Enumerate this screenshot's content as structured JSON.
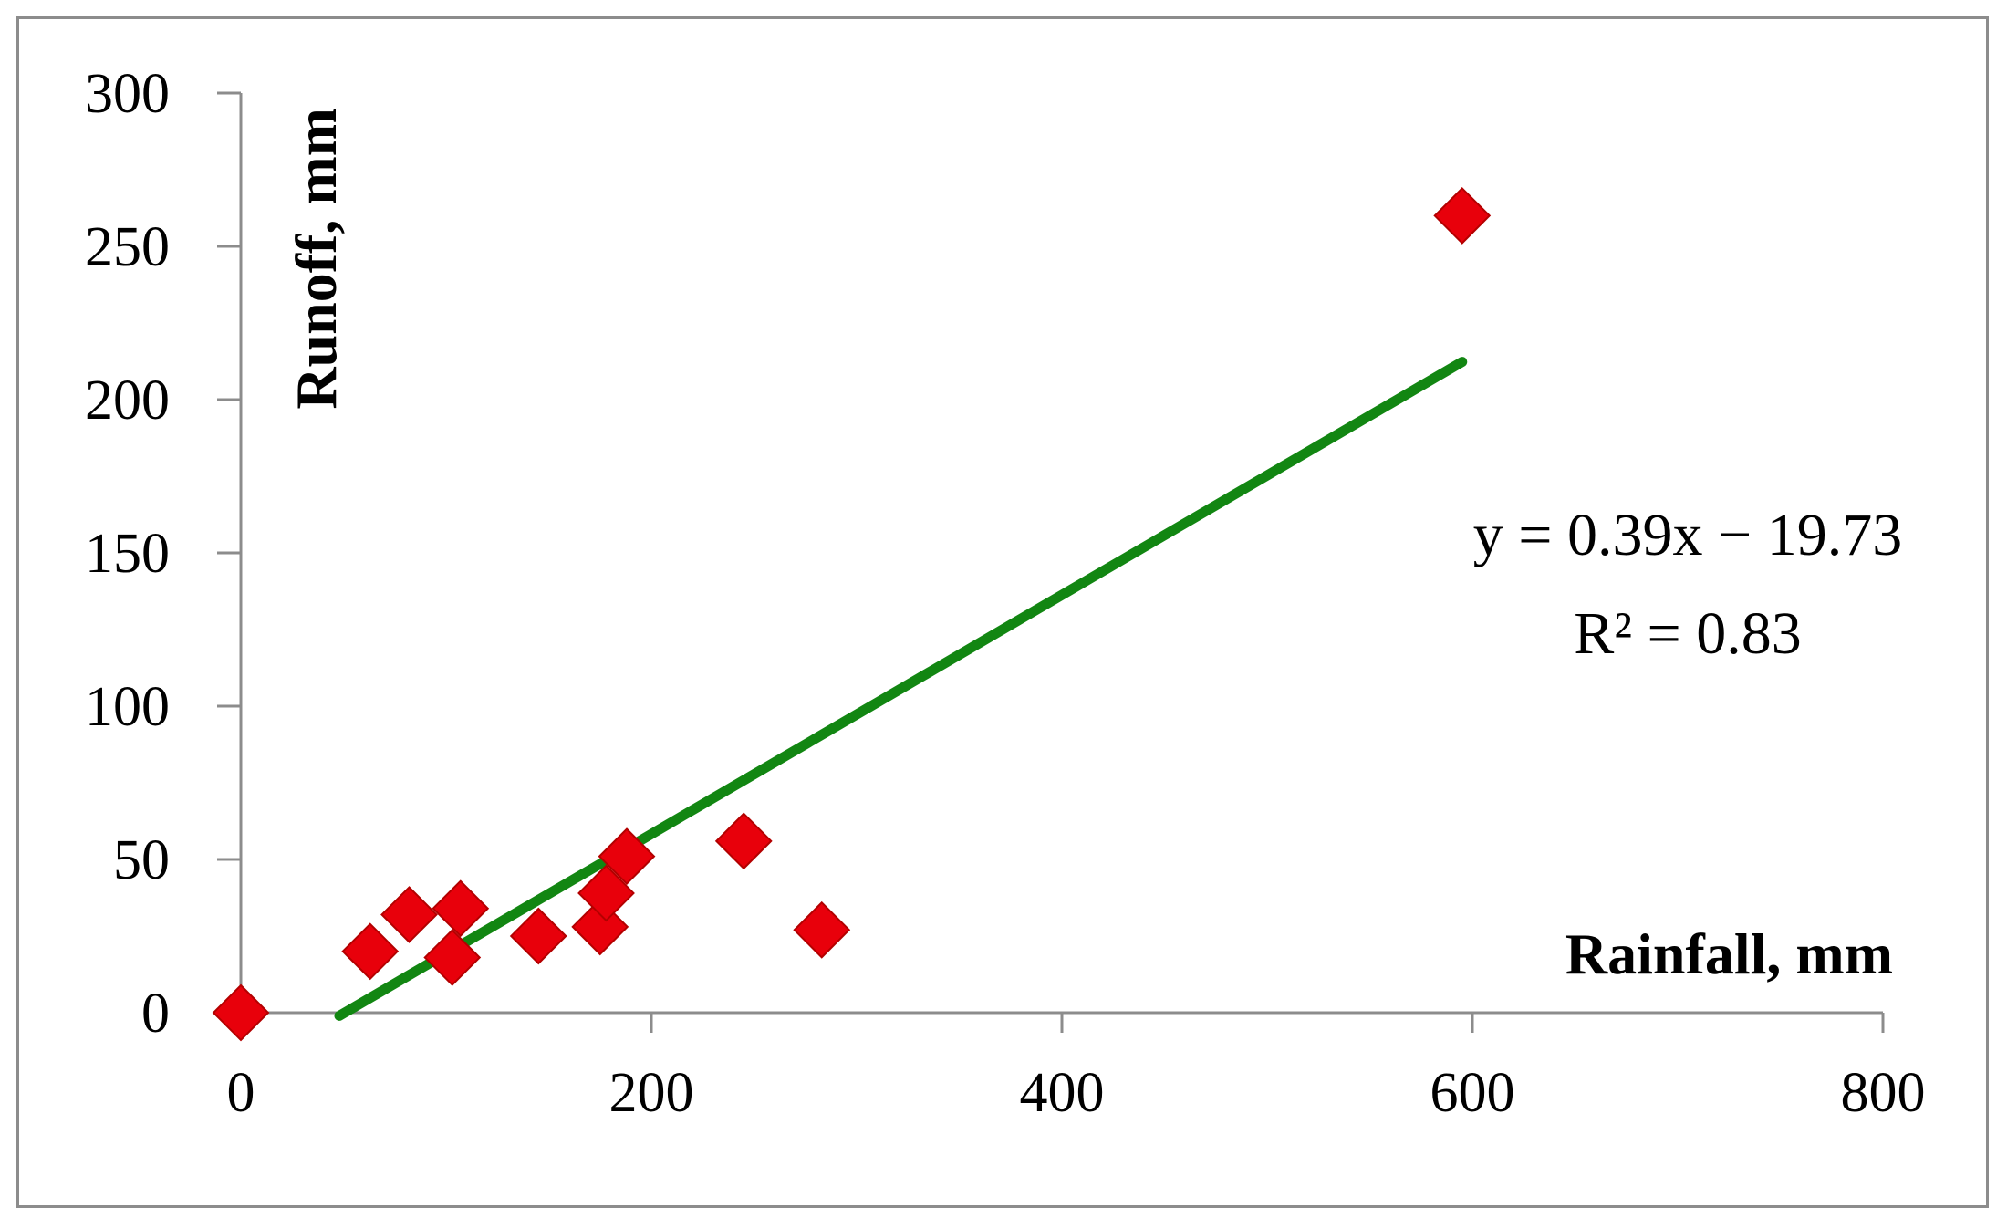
{
  "chart_data": {
    "type": "scatter",
    "title": "",
    "xlabel": "Rainfall, mm",
    "ylabel": "Runoff, mm",
    "xlim": [
      0,
      800
    ],
    "ylim": [
      0,
      300
    ],
    "xticks": [
      0,
      200,
      400,
      600,
      800
    ],
    "yticks": [
      0,
      50,
      100,
      150,
      200,
      250,
      300
    ],
    "grid": false,
    "legend": "none",
    "marker": {
      "shape": "diamond",
      "color": "#e8000b",
      "edge_color": "#b30000"
    },
    "series": [
      {
        "points": [
          {
            "x": 0,
            "y": 0
          },
          {
            "x": 63,
            "y": 20
          },
          {
            "x": 82,
            "y": 32
          },
          {
            "x": 103,
            "y": 18
          },
          {
            "x": 107,
            "y": 34
          },
          {
            "x": 145,
            "y": 25
          },
          {
            "x": 175,
            "y": 28
          },
          {
            "x": 178,
            "y": 39
          },
          {
            "x": 188,
            "y": 51
          },
          {
            "x": 245,
            "y": 56
          },
          {
            "x": 283,
            "y": 27
          },
          {
            "x": 595,
            "y": 260
          }
        ]
      }
    ],
    "trendline": {
      "type": "linear",
      "slope": 0.39,
      "intercept": -19.73,
      "x_range": [
        48,
        595
      ],
      "color": "#128612"
    },
    "annotations": [
      {
        "text": "y = 0.39x − 19.73"
      },
      {
        "text": "R² = 0.83"
      }
    ]
  }
}
